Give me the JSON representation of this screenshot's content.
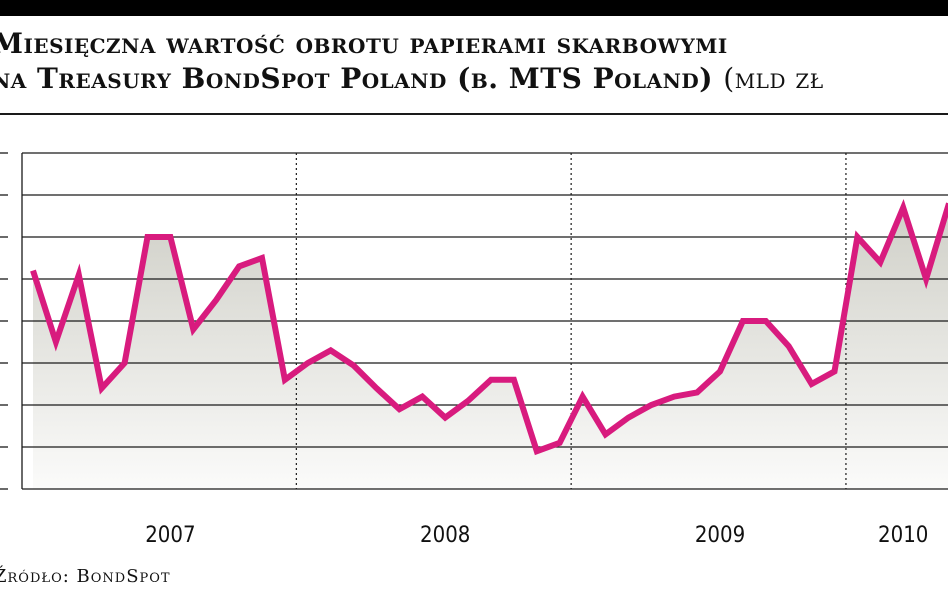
{
  "header": {
    "title_line1": "Miesięczna wartość obrotu papierami skarbowymi",
    "title_line2": "na Treasury BondSpot Poland (b. MTS Poland)",
    "unit": "(mld zł"
  },
  "source": "Źródło: BondSpot",
  "colors": {
    "line": "#d81b7e",
    "grid": "#1a1a1a",
    "fill_top": "#cfcfc7",
    "fill_bottom": "#fbfbfa"
  },
  "chart_data": {
    "type": "area",
    "title": "Miesięczna wartość obrotu papierami skarbowymi na Treasury BondSpot Poland (b. MTS Poland)",
    "xlabel": "",
    "ylabel": "mld zł",
    "grid": true,
    "legend": "none",
    "x": [
      "2007-01",
      "2007-02",
      "2007-03",
      "2007-04",
      "2007-05",
      "2007-06",
      "2007-07",
      "2007-08",
      "2007-09",
      "2007-10",
      "2007-11",
      "2007-12",
      "2008-01",
      "2008-02",
      "2008-03",
      "2008-04",
      "2008-05",
      "2008-06",
      "2008-07",
      "2008-08",
      "2008-09",
      "2008-10",
      "2008-11",
      "2008-12",
      "2009-01",
      "2009-02",
      "2009-03",
      "2009-04",
      "2009-05",
      "2009-06",
      "2009-07",
      "2009-08",
      "2009-09",
      "2009-10",
      "2009-11",
      "2009-12",
      "2010-01",
      "2010-02",
      "2010-03",
      "2010-04",
      "2010-05"
    ],
    "year_labels": [
      "2007",
      "2008",
      "2009",
      "2010"
    ],
    "year_label_months": [
      "2007-07",
      "2008-07",
      "2009-07",
      "2010-03"
    ],
    "series": [
      {
        "values": [
          26.0,
          17.5,
          25.5,
          12.0,
          15.0,
          30.0,
          30.0,
          19.0,
          22.5,
          26.5,
          27.5,
          13.0,
          15.0,
          16.5,
          14.7,
          12.0,
          9.5,
          11.0,
          8.5,
          10.5,
          13.0,
          13.0,
          4.5,
          5.5,
          11.0,
          6.5,
          8.5,
          10.0,
          11.0,
          11.5,
          14.0,
          20.0,
          20.0,
          17.0,
          12.5,
          14.0,
          30.0,
          27.0,
          33.5,
          25.0,
          34.0
        ]
      }
    ],
    "ylim": [
      0,
      40
    ],
    "yticks": [
      0,
      5,
      10,
      15,
      20,
      25,
      30,
      35,
      40
    ]
  }
}
